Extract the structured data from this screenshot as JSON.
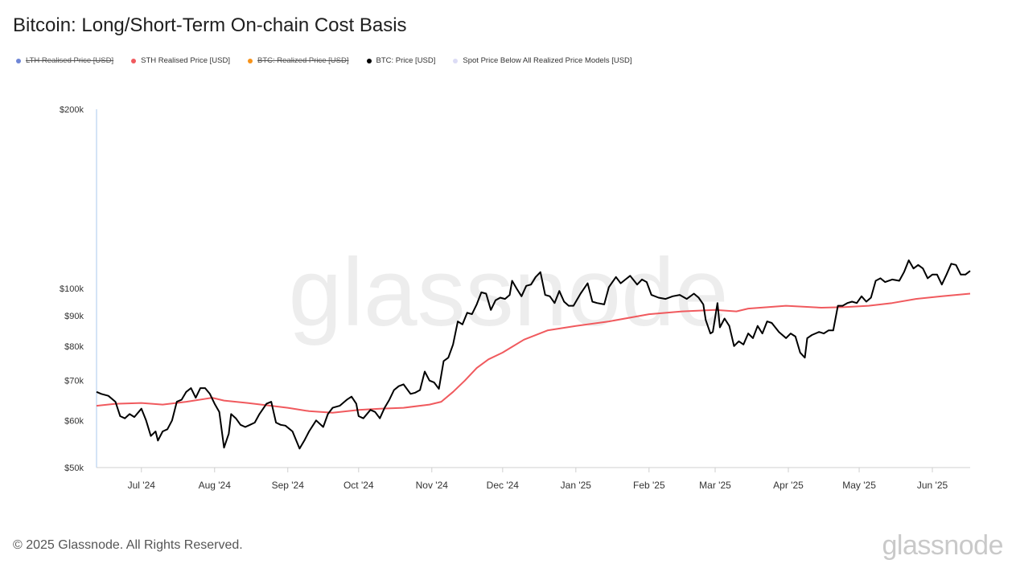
{
  "title": "Bitcoin: Long/Short-Term On-chain Cost Basis",
  "legend": [
    {
      "label": "LTH Realised Price [USD]",
      "color": "#6f86d6",
      "hidden": true
    },
    {
      "label": "STH Realised Price [USD]",
      "color": "#f05a5e",
      "hidden": false
    },
    {
      "label": "BTC: Realized Price [USD]",
      "color": "#f7931a",
      "hidden": true
    },
    {
      "label": "BTC: Price [USD]",
      "color": "#000000",
      "hidden": false
    },
    {
      "label": "Spot Price Below All Realized Price Models [USD]",
      "color": "#dcdcf5",
      "hidden": false
    }
  ],
  "watermark": "glassnode",
  "footer": "© 2025 Glassnode. All Rights Reserved.",
  "brand": "glassnode",
  "chart_data": {
    "type": "line",
    "yscale": "log",
    "ylim": [
      50000,
      200000
    ],
    "xlim": [
      "2024-06-12",
      "2025-06-17"
    ],
    "y_ticks": [
      {
        "value": 50000,
        "label": "$50k"
      },
      {
        "value": 60000,
        "label": "$60k"
      },
      {
        "value": 70000,
        "label": "$70k"
      },
      {
        "value": 80000,
        "label": "$80k"
      },
      {
        "value": 90000,
        "label": "$90k"
      },
      {
        "value": 100000,
        "label": "$100k"
      },
      {
        "value": 200000,
        "label": "$200k"
      }
    ],
    "x_ticks": [
      {
        "date": "2024-07-01",
        "label": "Jul '24"
      },
      {
        "date": "2024-08-01",
        "label": "Aug '24"
      },
      {
        "date": "2024-09-01",
        "label": "Sep '24"
      },
      {
        "date": "2024-10-01",
        "label": "Oct '24"
      },
      {
        "date": "2024-11-01",
        "label": "Nov '24"
      },
      {
        "date": "2024-12-01",
        "label": "Dec '24"
      },
      {
        "date": "2025-01-01",
        "label": "Jan '25"
      },
      {
        "date": "2025-02-01",
        "label": "Feb '25"
      },
      {
        "date": "2025-03-01",
        "label": "Mar '25"
      },
      {
        "date": "2025-04-01",
        "label": "Apr '25"
      },
      {
        "date": "2025-05-01",
        "label": "May '25"
      },
      {
        "date": "2025-06-01",
        "label": "Jun '25"
      }
    ],
    "series": [
      {
        "name": "STH Realised Price [USD]",
        "color": "#f05a5e",
        "points": [
          [
            "2024-06-12",
            63500
          ],
          [
            "2024-06-20",
            64000
          ],
          [
            "2024-07-01",
            64200
          ],
          [
            "2024-07-10",
            63800
          ],
          [
            "2024-07-20",
            64500
          ],
          [
            "2024-07-31",
            65500
          ],
          [
            "2024-08-05",
            64800
          ],
          [
            "2024-08-15",
            64200
          ],
          [
            "2024-08-25",
            63500
          ],
          [
            "2024-09-01",
            63000
          ],
          [
            "2024-09-10",
            62200
          ],
          [
            "2024-09-20",
            61800
          ],
          [
            "2024-10-01",
            62500
          ],
          [
            "2024-10-10",
            62800
          ],
          [
            "2024-10-20",
            63000
          ],
          [
            "2024-10-31",
            63800
          ],
          [
            "2024-11-05",
            64500
          ],
          [
            "2024-11-10",
            67000
          ],
          [
            "2024-11-15",
            70000
          ],
          [
            "2024-11-20",
            73500
          ],
          [
            "2024-11-25",
            76000
          ],
          [
            "2024-12-01",
            78000
          ],
          [
            "2024-12-10",
            82000
          ],
          [
            "2024-12-20",
            85000
          ],
          [
            "2025-01-01",
            86500
          ],
          [
            "2025-01-15",
            88000
          ],
          [
            "2025-02-01",
            90500
          ],
          [
            "2025-02-15",
            91500
          ],
          [
            "2025-03-01",
            92000
          ],
          [
            "2025-03-10",
            91500
          ],
          [
            "2025-03-15",
            92500
          ],
          [
            "2025-03-31",
            93500
          ],
          [
            "2025-04-15",
            92800
          ],
          [
            "2025-04-25",
            93000
          ],
          [
            "2025-05-05",
            93500
          ],
          [
            "2025-05-15",
            94500
          ],
          [
            "2025-05-25",
            96000
          ],
          [
            "2025-06-05",
            97000
          ],
          [
            "2025-06-17",
            98000
          ]
        ]
      },
      {
        "name": "BTC: Price [USD]",
        "color": "#000000",
        "points": [
          [
            "2024-06-12",
            67000
          ],
          [
            "2024-06-14",
            66500
          ],
          [
            "2024-06-17",
            66000
          ],
          [
            "2024-06-20",
            64500
          ],
          [
            "2024-06-22",
            61000
          ],
          [
            "2024-06-24",
            60500
          ],
          [
            "2024-06-26",
            61500
          ],
          [
            "2024-06-28",
            60800
          ],
          [
            "2024-07-01",
            62800
          ],
          [
            "2024-07-03",
            60000
          ],
          [
            "2024-07-05",
            56500
          ],
          [
            "2024-07-07",
            57500
          ],
          [
            "2024-07-08",
            55500
          ],
          [
            "2024-07-10",
            57500
          ],
          [
            "2024-07-12",
            58000
          ],
          [
            "2024-07-14",
            60000
          ],
          [
            "2024-07-16",
            64500
          ],
          [
            "2024-07-18",
            65000
          ],
          [
            "2024-07-20",
            67000
          ],
          [
            "2024-07-22",
            68000
          ],
          [
            "2024-07-24",
            65500
          ],
          [
            "2024-07-26",
            68000
          ],
          [
            "2024-07-28",
            68000
          ],
          [
            "2024-07-30",
            66500
          ],
          [
            "2024-08-01",
            64000
          ],
          [
            "2024-08-03",
            62000
          ],
          [
            "2024-08-05",
            54000
          ],
          [
            "2024-08-07",
            57000
          ],
          [
            "2024-08-08",
            61500
          ],
          [
            "2024-08-10",
            60500
          ],
          [
            "2024-08-12",
            59000
          ],
          [
            "2024-08-14",
            58500
          ],
          [
            "2024-08-16",
            59000
          ],
          [
            "2024-08-18",
            59500
          ],
          [
            "2024-08-20",
            61500
          ],
          [
            "2024-08-23",
            64000
          ],
          [
            "2024-08-25",
            64500
          ],
          [
            "2024-08-27",
            59500
          ],
          [
            "2024-08-29",
            59000
          ],
          [
            "2024-08-31",
            58800
          ],
          [
            "2024-09-03",
            57500
          ],
          [
            "2024-09-06",
            53800
          ],
          [
            "2024-09-08",
            55500
          ],
          [
            "2024-09-10",
            57500
          ],
          [
            "2024-09-13",
            60000
          ],
          [
            "2024-09-16",
            58500
          ],
          [
            "2024-09-18",
            61500
          ],
          [
            "2024-09-20",
            63000
          ],
          [
            "2024-09-23",
            63500
          ],
          [
            "2024-09-26",
            65000
          ],
          [
            "2024-09-28",
            65800
          ],
          [
            "2024-09-30",
            64000
          ],
          [
            "2024-10-01",
            61000
          ],
          [
            "2024-10-03",
            60500
          ],
          [
            "2024-10-06",
            62500
          ],
          [
            "2024-10-08",
            62000
          ],
          [
            "2024-10-10",
            60500
          ],
          [
            "2024-10-12",
            63000
          ],
          [
            "2024-10-14",
            65000
          ],
          [
            "2024-10-16",
            67500
          ],
          [
            "2024-10-18",
            68500
          ],
          [
            "2024-10-20",
            69000
          ],
          [
            "2024-10-23",
            66500
          ],
          [
            "2024-10-25",
            66800
          ],
          [
            "2024-10-27",
            67500
          ],
          [
            "2024-10-29",
            72500
          ],
          [
            "2024-10-31",
            70000
          ],
          [
            "2024-11-02",
            69500
          ],
          [
            "2024-11-04",
            67800
          ],
          [
            "2024-11-06",
            75500
          ],
          [
            "2024-11-08",
            76500
          ],
          [
            "2024-11-10",
            80500
          ],
          [
            "2024-11-12",
            88000
          ],
          [
            "2024-11-14",
            87000
          ],
          [
            "2024-11-16",
            91000
          ],
          [
            "2024-11-18",
            90500
          ],
          [
            "2024-11-20",
            94000
          ],
          [
            "2024-11-22",
            98500
          ],
          [
            "2024-11-24",
            98000
          ],
          [
            "2024-11-26",
            92000
          ],
          [
            "2024-11-28",
            95500
          ],
          [
            "2024-11-30",
            96500
          ],
          [
            "2024-12-02",
            96000
          ],
          [
            "2024-12-04",
            97500
          ],
          [
            "2024-12-05",
            103000
          ],
          [
            "2024-12-07",
            99800
          ],
          [
            "2024-12-09",
            97000
          ],
          [
            "2024-12-11",
            101000
          ],
          [
            "2024-12-13",
            101500
          ],
          [
            "2024-12-15",
            104500
          ],
          [
            "2024-12-17",
            106500
          ],
          [
            "2024-12-19",
            97500
          ],
          [
            "2024-12-21",
            97000
          ],
          [
            "2024-12-23",
            94500
          ],
          [
            "2024-12-25",
            99000
          ],
          [
            "2024-12-27",
            95000
          ],
          [
            "2024-12-29",
            93500
          ],
          [
            "2024-12-31",
            93500
          ],
          [
            "2025-01-03",
            98000
          ],
          [
            "2025-01-06",
            102000
          ],
          [
            "2025-01-08",
            95000
          ],
          [
            "2025-01-10",
            94500
          ],
          [
            "2025-01-13",
            94000
          ],
          [
            "2025-01-15",
            100500
          ],
          [
            "2025-01-18",
            104500
          ],
          [
            "2025-01-20",
            102000
          ],
          [
            "2025-01-22",
            103500
          ],
          [
            "2025-01-24",
            105000
          ],
          [
            "2025-01-27",
            101500
          ],
          [
            "2025-01-29",
            103500
          ],
          [
            "2025-01-31",
            102500
          ],
          [
            "2025-02-02",
            97500
          ],
          [
            "2025-02-05",
            96500
          ],
          [
            "2025-02-08",
            96000
          ],
          [
            "2025-02-11",
            97000
          ],
          [
            "2025-02-14",
            97500
          ],
          [
            "2025-02-17",
            96000
          ],
          [
            "2025-02-20",
            98000
          ],
          [
            "2025-02-22",
            96500
          ],
          [
            "2025-02-24",
            94000
          ],
          [
            "2025-02-25",
            88500
          ],
          [
            "2025-02-27",
            84000
          ],
          [
            "2025-02-28",
            84500
          ],
          [
            "2025-03-02",
            94500
          ],
          [
            "2025-03-03",
            86000
          ],
          [
            "2025-03-05",
            89000
          ],
          [
            "2025-03-07",
            86500
          ],
          [
            "2025-03-09",
            80000
          ],
          [
            "2025-03-11",
            81500
          ],
          [
            "2025-03-13",
            80500
          ],
          [
            "2025-03-15",
            84000
          ],
          [
            "2025-03-17",
            82500
          ],
          [
            "2025-03-19",
            86500
          ],
          [
            "2025-03-21",
            84000
          ],
          [
            "2025-03-23",
            88000
          ],
          [
            "2025-03-25",
            87500
          ],
          [
            "2025-03-28",
            84500
          ],
          [
            "2025-03-31",
            82500
          ],
          [
            "2025-04-02",
            84000
          ],
          [
            "2025-04-04",
            83000
          ],
          [
            "2025-04-06",
            78000
          ],
          [
            "2025-04-08",
            76500
          ],
          [
            "2025-04-09",
            82500
          ],
          [
            "2025-04-11",
            83500
          ],
          [
            "2025-04-14",
            84500
          ],
          [
            "2025-04-16",
            84000
          ],
          [
            "2025-04-18",
            85000
          ],
          [
            "2025-04-20",
            85000
          ],
          [
            "2025-04-22",
            93500
          ],
          [
            "2025-04-24",
            93500
          ],
          [
            "2025-04-26",
            94500
          ],
          [
            "2025-04-28",
            95000
          ],
          [
            "2025-04-30",
            94500
          ],
          [
            "2025-05-02",
            97000
          ],
          [
            "2025-05-04",
            95000
          ],
          [
            "2025-05-06",
            96500
          ],
          [
            "2025-05-08",
            103000
          ],
          [
            "2025-05-10",
            104000
          ],
          [
            "2025-05-12",
            102500
          ],
          [
            "2025-05-15",
            103500
          ],
          [
            "2025-05-18",
            103000
          ],
          [
            "2025-05-20",
            106500
          ],
          [
            "2025-05-22",
            111500
          ],
          [
            "2025-05-24",
            108000
          ],
          [
            "2025-05-26",
            109500
          ],
          [
            "2025-05-28",
            108000
          ],
          [
            "2025-05-30",
            104000
          ],
          [
            "2025-06-01",
            105500
          ],
          [
            "2025-06-03",
            105500
          ],
          [
            "2025-06-05",
            101500
          ],
          [
            "2025-06-07",
            105500
          ],
          [
            "2025-06-09",
            110000
          ],
          [
            "2025-06-11",
            109500
          ],
          [
            "2025-06-13",
            105500
          ],
          [
            "2025-06-15",
            105500
          ],
          [
            "2025-06-17",
            107000
          ]
        ]
      }
    ]
  }
}
